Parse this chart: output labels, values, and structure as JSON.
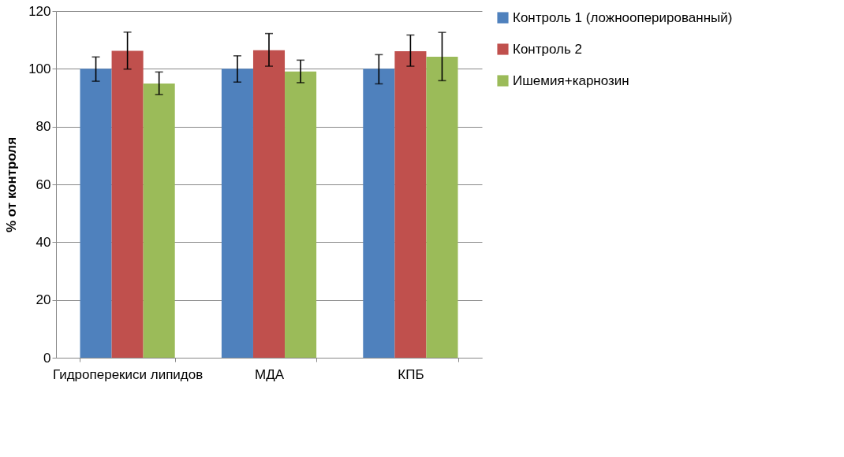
{
  "chart_data": {
    "type": "bar",
    "ylabel": "% от контроля",
    "categories": [
      "Гидроперекиси липидов",
      "МДА",
      "КПБ"
    ],
    "series": [
      {
        "name": "Контроль 1 (ложнооперированный)",
        "color": "#4f81bd",
        "values": [
          100,
          100,
          100
        ],
        "errors": [
          [
            95.7,
            104.1
          ],
          [
            95.4,
            104.5
          ],
          [
            94.8,
            104.9
          ]
        ]
      },
      {
        "name": "Контроль 2",
        "color": "#c0504d",
        "values": [
          106.2,
          106.4,
          106.1
        ],
        "errors": [
          [
            99.9,
            112.7
          ],
          [
            100.9,
            112.2
          ],
          [
            100.9,
            111.7
          ]
        ]
      },
      {
        "name": "Ишемия+карнозин",
        "color": "#9bbb59",
        "values": [
          94.9,
          99.1,
          104.2
        ],
        "errors": [
          [
            91.1,
            98.9
          ],
          [
            95.2,
            103.0
          ],
          [
            95.9,
            112.6
          ]
        ]
      }
    ],
    "ylim": [
      0,
      120
    ],
    "yticks": [
      0,
      20,
      40,
      60,
      80,
      100,
      120
    ],
    "grid": "y",
    "legend": "right"
  }
}
